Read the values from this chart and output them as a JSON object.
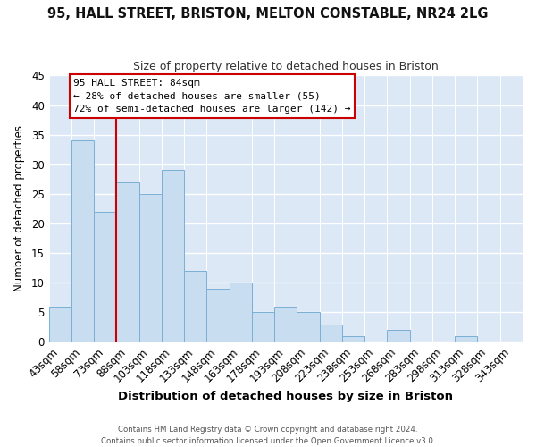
{
  "title1": "95, HALL STREET, BRISTON, MELTON CONSTABLE, NR24 2LG",
  "title2": "Size of property relative to detached houses in Briston",
  "xlabel": "Distribution of detached houses by size in Briston",
  "ylabel": "Number of detached properties",
  "bin_labels": [
    "43sqm",
    "58sqm",
    "73sqm",
    "88sqm",
    "103sqm",
    "118sqm",
    "133sqm",
    "148sqm",
    "163sqm",
    "178sqm",
    "193sqm",
    "208sqm",
    "223sqm",
    "238sqm",
    "253sqm",
    "268sqm",
    "283sqm",
    "298sqm",
    "313sqm",
    "328sqm",
    "343sqm"
  ],
  "bar_values": [
    6,
    34,
    22,
    27,
    25,
    29,
    12,
    9,
    10,
    5,
    6,
    5,
    3,
    1,
    0,
    2,
    0,
    0,
    1,
    0,
    0
  ],
  "bar_color": "#c8ddf0",
  "bar_edge_color": "#7aafd4",
  "vline_x": 2.5,
  "vline_color": "#cc0000",
  "ylim": [
    0,
    45
  ],
  "yticks": [
    0,
    5,
    10,
    15,
    20,
    25,
    30,
    35,
    40,
    45
  ],
  "annotation_title": "95 HALL STREET: 84sqm",
  "annotation_line1": "← 28% of detached houses are smaller (55)",
  "annotation_line2": "72% of semi-detached houses are larger (142) →",
  "annotation_box_color": "#ffffff",
  "annotation_box_edge": "#cc0000",
  "footer1": "Contains HM Land Registry data © Crown copyright and database right 2024.",
  "footer2": "Contains public sector information licensed under the Open Government Licence v3.0.",
  "background_color": "#ffffff",
  "plot_bg_color": "#dce8f5",
  "grid_color": "#ffffff"
}
